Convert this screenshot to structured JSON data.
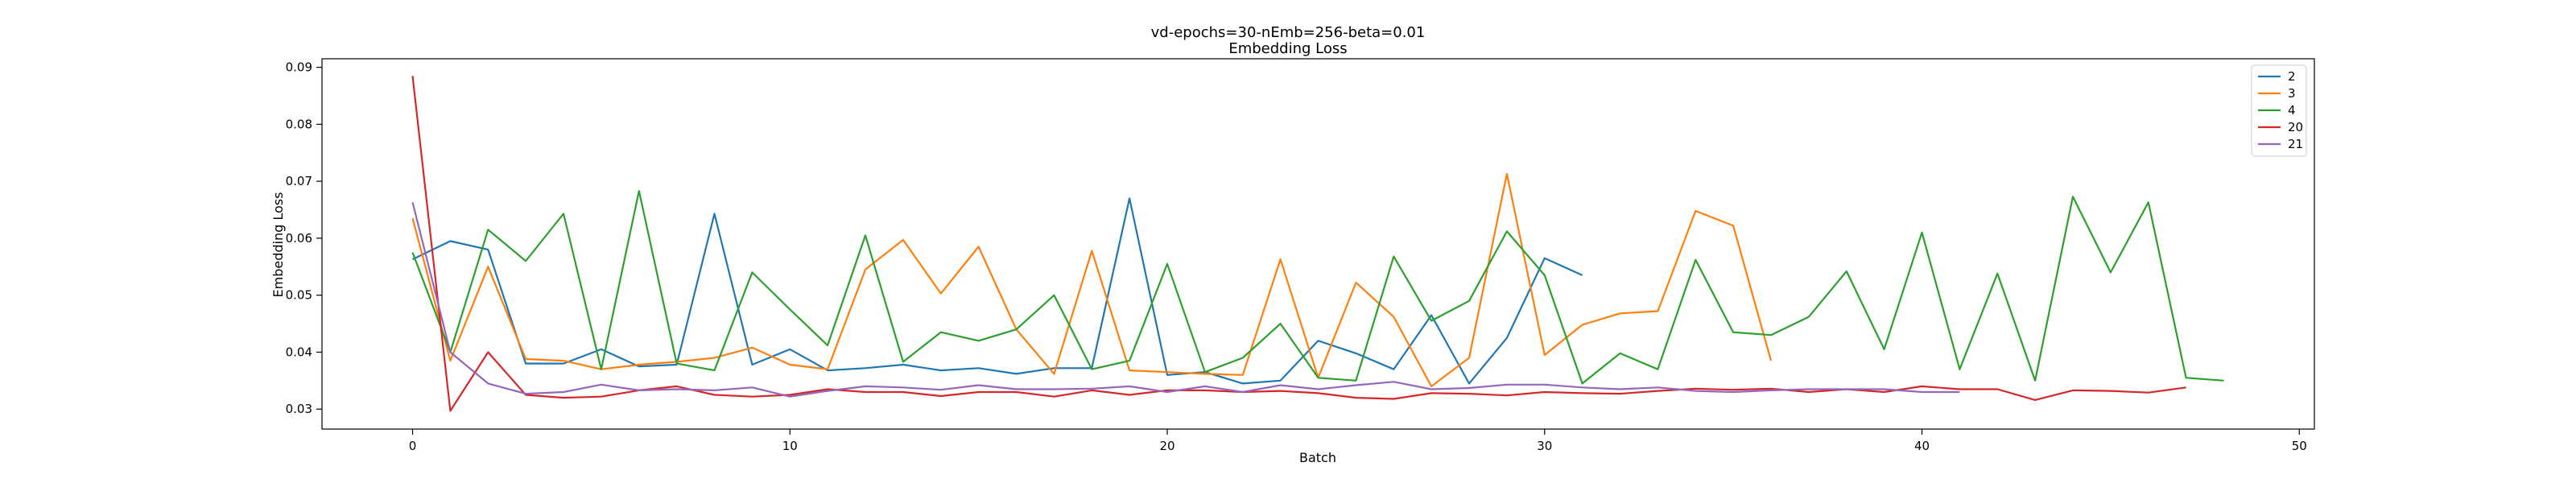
{
  "chart_data": {
    "type": "line",
    "title": "vd-epochs=30-nEmb=256-beta=0.01",
    "subtitle": "Embedding Loss",
    "xlabel": "Batch",
    "ylabel": "Embedding Loss",
    "xlim": [
      -2.4,
      50.4
    ],
    "ylim": [
      0.0265,
      0.0915
    ],
    "xticks": [
      0,
      10,
      20,
      30,
      40,
      50
    ],
    "yticks": [
      0.03,
      0.04,
      0.05,
      0.06,
      0.07,
      0.08,
      0.09
    ],
    "ytick_labels": [
      "0.03",
      "0.04",
      "0.05",
      "0.06",
      "0.07",
      "0.08",
      "0.09"
    ],
    "grid": false,
    "legend_position": "top-right",
    "series": [
      {
        "name": "2",
        "color": "#1f77b4",
        "x": [
          0,
          1,
          2,
          3,
          4,
          5,
          6,
          7,
          8,
          9,
          10,
          11,
          12,
          13,
          14,
          15,
          16,
          17,
          18,
          19,
          20,
          21,
          22,
          23,
          24,
          25,
          26,
          27,
          28,
          29,
          30,
          31
        ],
        "y": [
          0.0563,
          0.0595,
          0.058,
          0.038,
          0.038,
          0.0405,
          0.0375,
          0.0378,
          0.0643,
          0.0378,
          0.0405,
          0.0368,
          0.0372,
          0.0378,
          0.0368,
          0.0372,
          0.0362,
          0.0372,
          0.0372,
          0.067,
          0.036,
          0.0365,
          0.0345,
          0.035,
          0.042,
          0.0398,
          0.037,
          0.0465,
          0.0345,
          0.0425,
          0.0565,
          0.0535
        ]
      },
      {
        "name": "3",
        "color": "#ff7f0e",
        "x": [
          0,
          1,
          2,
          3,
          4,
          5,
          6,
          7,
          8,
          9,
          10,
          11,
          12,
          13,
          14,
          15,
          16,
          17,
          18,
          19,
          20,
          21,
          22,
          23,
          24,
          25,
          26,
          27,
          28,
          29,
          30,
          31,
          32,
          33,
          34,
          35,
          36
        ],
        "y": [
          0.0635,
          0.0385,
          0.055,
          0.0388,
          0.0385,
          0.037,
          0.0378,
          0.0383,
          0.039,
          0.0408,
          0.0378,
          0.037,
          0.0545,
          0.0597,
          0.0503,
          0.0585,
          0.044,
          0.0362,
          0.0578,
          0.0368,
          0.0365,
          0.0362,
          0.036,
          0.0563,
          0.0355,
          0.0522,
          0.0462,
          0.034,
          0.039,
          0.0713,
          0.0395,
          0.0448,
          0.0468,
          0.0472,
          0.0648,
          0.0622,
          0.0385
        ]
      },
      {
        "name": "4",
        "color": "#2ca02c",
        "x": [
          0,
          1,
          2,
          3,
          4,
          5,
          6,
          7,
          8,
          9,
          10,
          11,
          12,
          13,
          14,
          15,
          16,
          17,
          18,
          19,
          20,
          21,
          22,
          23,
          24,
          25,
          26,
          27,
          28,
          29,
          30,
          31,
          32,
          33,
          34,
          35,
          36,
          37,
          38,
          39,
          40,
          41,
          42,
          43,
          44,
          45,
          46,
          47,
          48
        ],
        "y": [
          0.0575,
          0.04,
          0.0615,
          0.056,
          0.0643,
          0.037,
          0.0683,
          0.038,
          0.0368,
          0.054,
          0.0475,
          0.0412,
          0.0605,
          0.0383,
          0.0435,
          0.042,
          0.044,
          0.05,
          0.037,
          0.0385,
          0.0555,
          0.0365,
          0.039,
          0.045,
          0.0355,
          0.035,
          0.0568,
          0.0455,
          0.049,
          0.0612,
          0.0535,
          0.0345,
          0.0398,
          0.037,
          0.0562,
          0.0435,
          0.043,
          0.0462,
          0.0542,
          0.0405,
          0.061,
          0.037,
          0.0538,
          0.035,
          0.0673,
          0.054,
          0.0663,
          0.0355,
          0.035
        ]
      },
      {
        "name": "20",
        "color": "#d62728",
        "x": [
          0,
          1,
          2,
          3,
          4,
          5,
          6,
          7,
          8,
          9,
          10,
          11,
          12,
          13,
          14,
          15,
          16,
          17,
          18,
          19,
          20,
          21,
          22,
          23,
          24,
          25,
          26,
          27,
          28,
          29,
          30,
          31,
          32,
          33,
          34,
          35,
          36,
          37,
          38,
          39,
          40,
          41,
          42,
          43,
          44,
          45,
          46,
          47
        ],
        "y": [
          0.0885,
          0.0297,
          0.04,
          0.0325,
          0.032,
          0.0322,
          0.0333,
          0.034,
          0.0325,
          0.0322,
          0.0325,
          0.0335,
          0.033,
          0.033,
          0.0323,
          0.033,
          0.033,
          0.0322,
          0.0333,
          0.0325,
          0.0333,
          0.0333,
          0.033,
          0.0332,
          0.0328,
          0.032,
          0.0318,
          0.0328,
          0.0327,
          0.0324,
          0.033,
          0.0328,
          0.0327,
          0.0332,
          0.0336,
          0.0334,
          0.0336,
          0.033,
          0.0335,
          0.033,
          0.034,
          0.0335,
          0.0335,
          0.0316,
          0.0333,
          0.0332,
          0.0329,
          0.0338
        ]
      },
      {
        "name": "21",
        "color": "#9467bd",
        "x": [
          0,
          1,
          2,
          3,
          4,
          5,
          6,
          7,
          8,
          9,
          10,
          11,
          12,
          13,
          14,
          15,
          16,
          17,
          18,
          19,
          20,
          21,
          22,
          23,
          24,
          25,
          26,
          27,
          28,
          29,
          30,
          31,
          32,
          33,
          34,
          35,
          36,
          37,
          38,
          39,
          40,
          41
        ],
        "y": [
          0.0663,
          0.04,
          0.0345,
          0.0327,
          0.033,
          0.0343,
          0.0333,
          0.0335,
          0.0333,
          0.0338,
          0.0322,
          0.0332,
          0.034,
          0.0338,
          0.0334,
          0.0342,
          0.0335,
          0.0335,
          0.0336,
          0.034,
          0.033,
          0.034,
          0.033,
          0.0342,
          0.0335,
          0.0342,
          0.0348,
          0.0335,
          0.0337,
          0.0343,
          0.0343,
          0.0338,
          0.0335,
          0.0338,
          0.0332,
          0.033,
          0.0333,
          0.0335,
          0.0335,
          0.0335,
          0.033,
          0.033
        ]
      }
    ]
  }
}
